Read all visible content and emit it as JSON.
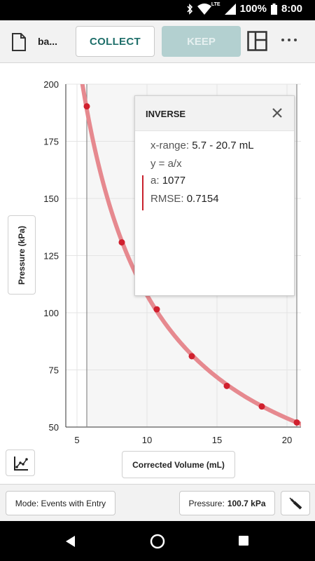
{
  "status": {
    "lte": "LTE",
    "battery": "100%",
    "time": "8:00"
  },
  "toolbar": {
    "file_name": "ba...",
    "collect_label": "COLLECT",
    "keep_label": "KEEP"
  },
  "chart_data": {
    "type": "scatter",
    "xlabel": "Corrected Volume (mL)",
    "ylabel": "Pressure (kPa)",
    "xlim": [
      4.2,
      21.0
    ],
    "ylim": [
      50,
      200
    ],
    "x_ticks": [
      5,
      10,
      15,
      20
    ],
    "y_ticks": [
      50,
      75,
      100,
      125,
      150,
      175,
      200
    ],
    "grid": true,
    "series": [
      {
        "x": [
          5.7,
          8.2,
          10.7,
          13.2,
          15.7,
          18.2,
          20.7
        ],
        "y": [
          190.3,
          130.8,
          101.5,
          81.0,
          68.0,
          59.0,
          52.0
        ],
        "color": "#d0202e"
      }
    ],
    "fit": {
      "type": "inverse",
      "a": 1077,
      "color": "#e6898f"
    },
    "selection": [
      5.7,
      20.7
    ]
  },
  "fit_panel": {
    "title": "INVERSE",
    "xrange_label": "x-range:",
    "xrange_value": "5.7 - 20.7 mL",
    "equation": "y = a/x",
    "a_label": "a:",
    "a_value": "1077",
    "rmse_label": "RMSE:",
    "rmse_value": "0.7154"
  },
  "bottom": {
    "mode_label": "Mode: Events with Entry",
    "meter_label": "Pressure:",
    "meter_value": "100.7 kPa"
  },
  "icons": {
    "file": "file-icon",
    "layout": "layout-icon",
    "more": "more-vert-icon",
    "close": "close-icon",
    "graph_tools": "graph-tools-icon",
    "probe": "probe-icon",
    "back": "back-icon",
    "home": "home-icon",
    "recent": "recent-apps-icon"
  }
}
